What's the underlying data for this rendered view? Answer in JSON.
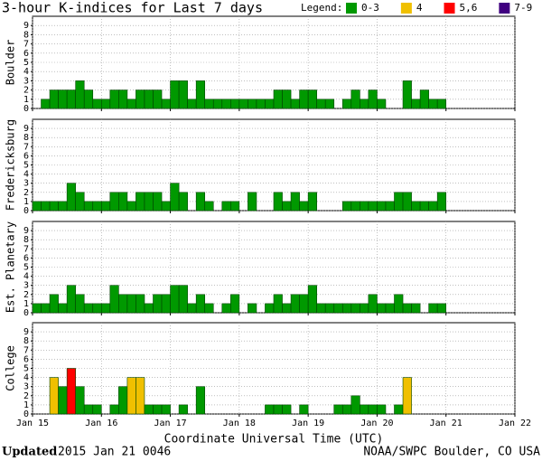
{
  "chart_data": {
    "type": "bar",
    "title": "3-hour K-indices for Last 7 days",
    "legend_title": "Legend:",
    "legend": [
      {
        "label": "0-3",
        "color": "#009900"
      },
      {
        "label": "4",
        "color": "#f0c000"
      },
      {
        "label": "5,6",
        "color": "#ff0000"
      },
      {
        "label": "7-9",
        "color": "#400080"
      }
    ],
    "xlabel": "Coordinate Universal Time (UTC)",
    "xlim": [
      0,
      56
    ],
    "xticks": [
      {
        "value": 0,
        "label": "Jan 15"
      },
      {
        "value": 8,
        "label": "Jan 16"
      },
      {
        "value": 16,
        "label": "Jan 17"
      },
      {
        "value": 24,
        "label": "Jan 18"
      },
      {
        "value": 32,
        "label": "Jan 19"
      },
      {
        "value": 40,
        "label": "Jan 20"
      },
      {
        "value": 48,
        "label": "Jan 21"
      },
      {
        "value": 56,
        "label": "Jan 22"
      }
    ],
    "ylim": [
      0,
      10
    ],
    "yticks": [
      0,
      1,
      2,
      3,
      4,
      5,
      6,
      7,
      8,
      9
    ],
    "grid": true,
    "panels": [
      {
        "ylabel": "Boulder",
        "values": [
          0,
          1,
          2,
          2,
          2,
          3,
          2,
          1,
          1,
          2,
          2,
          1,
          2,
          2,
          2,
          1,
          3,
          3,
          1,
          3,
          1,
          1,
          1,
          1,
          1,
          1,
          1,
          1,
          2,
          2,
          1,
          2,
          2,
          1,
          1,
          0,
          1,
          2,
          1,
          2,
          1,
          0,
          0,
          3,
          1,
          2,
          1,
          1,
          null,
          null,
          null,
          null,
          null,
          null,
          null,
          null
        ]
      },
      {
        "ylabel": "Fredericksburg",
        "values": [
          1,
          1,
          1,
          1,
          3,
          2,
          1,
          1,
          1,
          2,
          2,
          1,
          2,
          2,
          2,
          1,
          3,
          2,
          0,
          2,
          1,
          0,
          1,
          1,
          0,
          2,
          0,
          0,
          2,
          1,
          2,
          1,
          2,
          0,
          0,
          0,
          1,
          1,
          1,
          1,
          1,
          1,
          2,
          2,
          1,
          1,
          1,
          2,
          null,
          null,
          null,
          null,
          null,
          null,
          null,
          null
        ]
      },
      {
        "ylabel": "Est. Planetary",
        "values": [
          1,
          1,
          2,
          1,
          3,
          2,
          1,
          1,
          1,
          3,
          2,
          2,
          2,
          1,
          2,
          2,
          3,
          3,
          1,
          2,
          1,
          0,
          1,
          2,
          0,
          1,
          0,
          1,
          2,
          1,
          2,
          2,
          3,
          1,
          1,
          1,
          1,
          1,
          1,
          2,
          1,
          1,
          2,
          1,
          1,
          0,
          1,
          1,
          null,
          null,
          null,
          null,
          null,
          null,
          null,
          null
        ]
      },
      {
        "ylabel": "College",
        "values": [
          0,
          0,
          4,
          3,
          5,
          3,
          1,
          1,
          0,
          1,
          3,
          4,
          4,
          1,
          1,
          1,
          0,
          1,
          0,
          3,
          0,
          0,
          0,
          0,
          0,
          0,
          0,
          1,
          1,
          1,
          0,
          1,
          0,
          0,
          0,
          1,
          1,
          2,
          1,
          1,
          1,
          0,
          1,
          4,
          0,
          0,
          0,
          0,
          null,
          null,
          null,
          null,
          null,
          null,
          null,
          null
        ]
      }
    ]
  },
  "footer": {
    "updated_label": "Updated",
    "updated_time": "2015 Jan 21 0046",
    "source": "NOAA/SWPC Boulder, CO USA"
  }
}
